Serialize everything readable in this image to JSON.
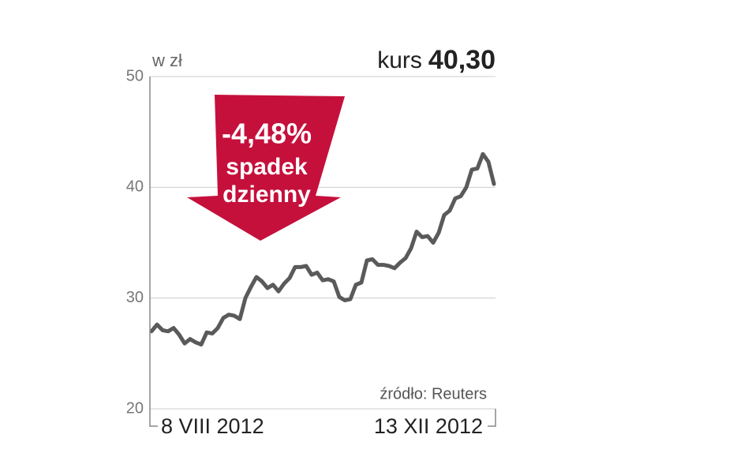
{
  "chart_data": {
    "type": "line",
    "unit_label": "w zł",
    "price_label": "kurs",
    "price_value": "40,30",
    "annotation": {
      "change": "-4,48%",
      "line1": "spadek",
      "line2": "dzienny"
    },
    "source": "źródło: Reuters",
    "categories": [
      "8 VIII 2012",
      null,
      null,
      null,
      null,
      null,
      null,
      null,
      null,
      null,
      null,
      null,
      null,
      null,
      null,
      null,
      null,
      null,
      null,
      null,
      null,
      null,
      null,
      null,
      null,
      null,
      null,
      null,
      null,
      null,
      null,
      null,
      null,
      null,
      null,
      null,
      null,
      null,
      null,
      null,
      null,
      null,
      null,
      null,
      null,
      null,
      null,
      null,
      null,
      null,
      null,
      null,
      null,
      null,
      null,
      null,
      null,
      null,
      null,
      null,
      null,
      null,
      "13 XII 2012"
    ],
    "values": [
      27.0,
      27.6,
      27.1,
      27.0,
      27.3,
      26.7,
      25.9,
      26.3,
      26.0,
      25.8,
      26.9,
      26.8,
      27.3,
      28.2,
      28.5,
      28.4,
      28.1,
      30.0,
      31.0,
      31.9,
      31.5,
      30.9,
      31.2,
      30.6,
      31.3,
      31.8,
      32.8,
      32.8,
      32.9,
      32.1,
      32.3,
      31.6,
      31.7,
      31.5,
      30.1,
      29.8,
      29.9,
      31.2,
      31.4,
      33.4,
      33.5,
      33.0,
      33.0,
      32.9,
      32.7,
      33.2,
      33.6,
      34.5,
      36.0,
      35.5,
      35.6,
      35.0,
      35.9,
      37.5,
      37.9,
      39.0,
      39.2,
      40.0,
      41.6,
      41.7,
      43.0,
      42.3,
      40.3
    ],
    "color": "#5a5a5a",
    "ylim": [
      20,
      50
    ],
    "yticks": [
      20,
      30,
      40,
      50
    ],
    "grid": true
  }
}
